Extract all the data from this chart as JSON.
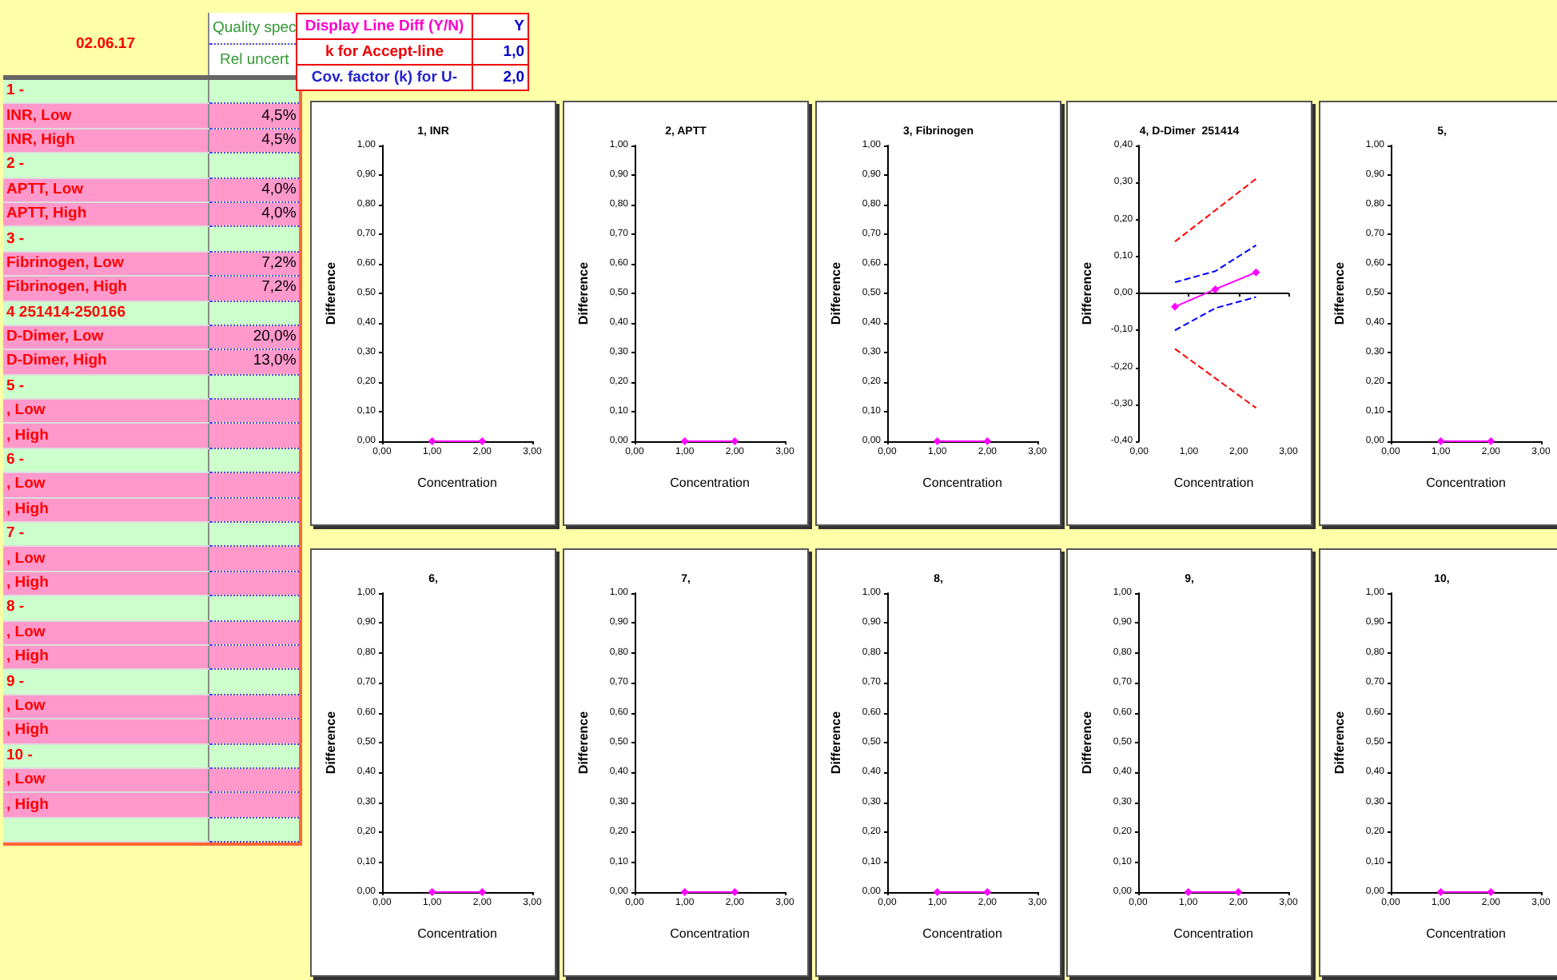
{
  "chart_data": [
    {
      "type": "other",
      "title": "02.06.17",
      "annotations": [
        "Quality spec",
        "Rel uncert"
      ],
      "categories": [
        "1 -",
        "INR, Low",
        "INR, High",
        "2 -",
        "APTT, Low",
        "APTT, High",
        "3 -",
        "Fibrinogen, Low",
        "Fibrinogen, High",
        "4 251414-250166",
        "D-Dimer, Low",
        "D-Dimer, High",
        "5 -",
        ", Low",
        ", High",
        "6 -",
        ", Low",
        ", High",
        "7 -",
        ", Low",
        ", High",
        "8 -",
        ", Low",
        ", High",
        "9 -",
        ", Low",
        ", High",
        "10 -",
        ", Low",
        ", High",
        null
      ],
      "value_labels": [
        null,
        "4,5%",
        "4,5%",
        null,
        "4,0%",
        "4,0%",
        null,
        "7,2%",
        "7,2%",
        null,
        "20,0%",
        "13,0%",
        null,
        null,
        null,
        null,
        null,
        null,
        null,
        null,
        null,
        null,
        null,
        null,
        null,
        null,
        null,
        null,
        null,
        null,
        null
      ],
      "colors": [
        "#ccffcc",
        "#ff99cc",
        "#ff99cc",
        "#ccffcc",
        "#ff99cc",
        "#ff99cc",
        "#ccffcc",
        "#ff99cc",
        "#ff99cc",
        "#ccffcc",
        "#ff99cc",
        "#ff99cc",
        "#ccffcc",
        "#ff99cc",
        "#ff99cc",
        "#ccffcc",
        "#ff99cc",
        "#ff99cc",
        "#ccffcc",
        "#ff99cc",
        "#ff99cc",
        "#ccffcc",
        "#ff99cc",
        "#ff99cc",
        "#ccffcc",
        "#ff99cc",
        "#ff99cc",
        "#ccffcc",
        "#ff99cc",
        "#ff99cc",
        "#ccffcc"
      ]
    },
    {
      "type": "other",
      "categories": [
        "Display Line Diff (Y/N)",
        "k for Accept-line",
        "Cov. factor (k) for U-"
      ],
      "value_labels": [
        "Y",
        "1,0",
        "2,0"
      ],
      "colors": [
        "#ffffff",
        "#ffffff",
        "#ffffff"
      ]
    },
    {
      "type": "line",
      "title": "1, INR",
      "xlabel": "Concentration",
      "ylabel": "Difference",
      "marker": "diamond",
      "xlim": [
        0,
        3
      ],
      "ylim": [
        0,
        1
      ],
      "xticks": [
        {
          "value": 0,
          "label": "0,00"
        },
        {
          "value": 1,
          "label": "1,00"
        },
        {
          "value": 2,
          "label": "2,00"
        },
        {
          "value": 3,
          "label": "3,00"
        }
      ],
      "yticks": [
        {
          "value": 0,
          "label": "0,00"
        },
        {
          "value": 0.1,
          "label": "0,10"
        },
        {
          "value": 0.2,
          "label": "0,20"
        },
        {
          "value": 0.3,
          "label": "0,30"
        },
        {
          "value": 0.4,
          "label": "0,40"
        },
        {
          "value": 0.5,
          "label": "0,50"
        },
        {
          "value": 0.6,
          "label": "0,60"
        },
        {
          "value": 0.7,
          "label": "0,70"
        },
        {
          "value": 0.8,
          "label": "0,80"
        },
        {
          "value": 0.9,
          "label": "0,90"
        },
        {
          "value": 1,
          "label": "1,00"
        }
      ],
      "series": [
        {
          "color": "#ff00ff",
          "x": [
            1,
            2
          ],
          "values": [
            0,
            0
          ]
        }
      ]
    },
    {
      "type": "line",
      "title": "2, APTT",
      "xlabel": "Concentration",
      "ylabel": "Difference",
      "marker": "diamond",
      "xlim": [
        0,
        3
      ],
      "ylim": [
        0,
        1
      ],
      "xticks": [
        {
          "value": 0,
          "label": "0,00"
        },
        {
          "value": 1,
          "label": "1,00"
        },
        {
          "value": 2,
          "label": "2,00"
        },
        {
          "value": 3,
          "label": "3,00"
        }
      ],
      "yticks": [
        {
          "value": 0,
          "label": "0,00"
        },
        {
          "value": 0.1,
          "label": "0,10"
        },
        {
          "value": 0.2,
          "label": "0,20"
        },
        {
          "value": 0.3,
          "label": "0,30"
        },
        {
          "value": 0.4,
          "label": "0,40"
        },
        {
          "value": 0.5,
          "label": "0,50"
        },
        {
          "value": 0.6,
          "label": "0,60"
        },
        {
          "value": 0.7,
          "label": "0,70"
        },
        {
          "value": 0.8,
          "label": "0,80"
        },
        {
          "value": 0.9,
          "label": "0,90"
        },
        {
          "value": 1,
          "label": "1,00"
        }
      ],
      "series": [
        {
          "color": "#ff00ff",
          "x": [
            1,
            2
          ],
          "values": [
            0,
            0
          ]
        }
      ]
    },
    {
      "type": "line",
      "title": "3, Fibrinogen",
      "xlabel": "Concentration",
      "ylabel": "Difference",
      "marker": "diamond",
      "xlim": [
        0,
        3
      ],
      "ylim": [
        0,
        1
      ],
      "xticks": [
        {
          "value": 0,
          "label": "0,00"
        },
        {
          "value": 1,
          "label": "1,00"
        },
        {
          "value": 2,
          "label": "2,00"
        },
        {
          "value": 3,
          "label": "3,00"
        }
      ],
      "yticks": [
        {
          "value": 0,
          "label": "0,00"
        },
        {
          "value": 0.1,
          "label": "0,10"
        },
        {
          "value": 0.2,
          "label": "0,20"
        },
        {
          "value": 0.3,
          "label": "0,30"
        },
        {
          "value": 0.4,
          "label": "0,40"
        },
        {
          "value": 0.5,
          "label": "0,50"
        },
        {
          "value": 0.6,
          "label": "0,60"
        },
        {
          "value": 0.7,
          "label": "0,70"
        },
        {
          "value": 0.8,
          "label": "0,80"
        },
        {
          "value": 0.9,
          "label": "0,90"
        },
        {
          "value": 1,
          "label": "1,00"
        }
      ],
      "series": [
        {
          "color": "#ff00ff",
          "x": [
            1,
            2
          ],
          "values": [
            0,
            0
          ]
        }
      ]
    },
    {
      "type": "line",
      "title": "4, D-Dimer  251414",
      "xlabel": "Concentration",
      "ylabel": "Difference",
      "marker": "diamond",
      "xlim": [
        0,
        3
      ],
      "ylim": [
        -0.4,
        0.4
      ],
      "xticks": [
        {
          "value": 0,
          "label": "0,00"
        },
        {
          "value": 1,
          "label": "1,00"
        },
        {
          "value": 2,
          "label": "2,00"
        },
        {
          "value": 3,
          "label": "3,00"
        }
      ],
      "yticks": [
        {
          "value": -0.4,
          "label": "-0,40"
        },
        {
          "value": -0.3,
          "label": "-0,30"
        },
        {
          "value": -0.2,
          "label": "-0,20"
        },
        {
          "value": -0.1,
          "label": "-0,10"
        },
        {
          "value": 0,
          "label": "0,00"
        },
        {
          "value": 0.1,
          "label": "0,10"
        },
        {
          "value": 0.2,
          "label": "0,20"
        },
        {
          "value": 0.3,
          "label": "0,30"
        },
        {
          "value": 0.4,
          "label": "0,40"
        }
      ],
      "series": [
        {
          "color": "#ff0000",
          "marker": "none",
          "line_style": "dashed",
          "x": [
            0.72,
            2.35
          ],
          "values": [
            0.14,
            0.31
          ]
        },
        {
          "color": "#ff0000",
          "marker": "none",
          "line_style": "dashed",
          "x": [
            0.72,
            2.35
          ],
          "values": [
            -0.15,
            -0.31
          ]
        },
        {
          "color": "#0000ff",
          "marker": "none",
          "line_style": "dashed",
          "x": [
            0.72,
            1.53,
            2.35
          ],
          "values": [
            0.03,
            0.06,
            0.13
          ]
        },
        {
          "color": "#0000ff",
          "marker": "none",
          "line_style": "dashed",
          "x": [
            0.72,
            1.53,
            2.35
          ],
          "values": [
            -0.1,
            -0.04,
            -0.01
          ]
        },
        {
          "color": "#ff00ff",
          "x": [
            0.72,
            1.53,
            2.35
          ],
          "values": [
            -0.036,
            0.011,
            0.057
          ]
        }
      ]
    },
    {
      "type": "line",
      "title": "5,",
      "xlabel": "Concentration",
      "ylabel": "Difference",
      "marker": "diamond",
      "xlim": [
        0,
        3
      ],
      "ylim": [
        0,
        1
      ],
      "xticks": [
        {
          "value": 0,
          "label": "0,00"
        },
        {
          "value": 1,
          "label": "1,00"
        },
        {
          "value": 2,
          "label": "2,00"
        },
        {
          "value": 3,
          "label": "3,00"
        }
      ],
      "yticks": [
        {
          "value": 0,
          "label": "0,00"
        },
        {
          "value": 0.1,
          "label": "0,10"
        },
        {
          "value": 0.2,
          "label": "0,20"
        },
        {
          "value": 0.3,
          "label": "0,30"
        },
        {
          "value": 0.4,
          "label": "0,40"
        },
        {
          "value": 0.5,
          "label": "0,50"
        },
        {
          "value": 0.6,
          "label": "0,60"
        },
        {
          "value": 0.7,
          "label": "0,70"
        },
        {
          "value": 0.8,
          "label": "0,80"
        },
        {
          "value": 0.9,
          "label": "0,90"
        },
        {
          "value": 1,
          "label": "1,00"
        }
      ],
      "series": [
        {
          "color": "#ff00ff",
          "x": [
            1,
            2
          ],
          "values": [
            0,
            0
          ]
        }
      ]
    },
    {
      "type": "line",
      "title": "6,",
      "xlabel": "Concentration",
      "ylabel": "Difference",
      "marker": "diamond",
      "xlim": [
        0,
        3
      ],
      "ylim": [
        0,
        1
      ],
      "xticks": [
        {
          "value": 0,
          "label": "0,00"
        },
        {
          "value": 1,
          "label": "1,00"
        },
        {
          "value": 2,
          "label": "2,00"
        },
        {
          "value": 3,
          "label": "3,00"
        }
      ],
      "yticks": [
        {
          "value": 0,
          "label": "0,00"
        },
        {
          "value": 0.1,
          "label": "0,10"
        },
        {
          "value": 0.2,
          "label": "0,20"
        },
        {
          "value": 0.3,
          "label": "0,30"
        },
        {
          "value": 0.4,
          "label": "0,40"
        },
        {
          "value": 0.5,
          "label": "0,50"
        },
        {
          "value": 0.6,
          "label": "0,60"
        },
        {
          "value": 0.7,
          "label": "0,70"
        },
        {
          "value": 0.8,
          "label": "0,80"
        },
        {
          "value": 0.9,
          "label": "0,90"
        },
        {
          "value": 1,
          "label": "1,00"
        }
      ],
      "series": [
        {
          "color": "#ff00ff",
          "x": [
            1,
            2
          ],
          "values": [
            0,
            0
          ]
        }
      ]
    },
    {
      "type": "line",
      "title": "7,",
      "xlabel": "Concentration",
      "ylabel": "Difference",
      "marker": "diamond",
      "xlim": [
        0,
        3
      ],
      "ylim": [
        0,
        1
      ],
      "xticks": [
        {
          "value": 0,
          "label": "0,00"
        },
        {
          "value": 1,
          "label": "1,00"
        },
        {
          "value": 2,
          "label": "2,00"
        },
        {
          "value": 3,
          "label": "3,00"
        }
      ],
      "yticks": [
        {
          "value": 0,
          "label": "0,00"
        },
        {
          "value": 0.1,
          "label": "0,10"
        },
        {
          "value": 0.2,
          "label": "0,20"
        },
        {
          "value": 0.3,
          "label": "0,30"
        },
        {
          "value": 0.4,
          "label": "0,40"
        },
        {
          "value": 0.5,
          "label": "0,50"
        },
        {
          "value": 0.6,
          "label": "0,60"
        },
        {
          "value": 0.7,
          "label": "0,70"
        },
        {
          "value": 0.8,
          "label": "0,80"
        },
        {
          "value": 0.9,
          "label": "0,90"
        },
        {
          "value": 1,
          "label": "1,00"
        }
      ],
      "series": [
        {
          "color": "#ff00ff",
          "x": [
            1,
            2
          ],
          "values": [
            0,
            0
          ]
        }
      ]
    },
    {
      "type": "line",
      "title": "8,",
      "xlabel": "Concentration",
      "ylabel": "Difference",
      "marker": "diamond",
      "xlim": [
        0,
        3
      ],
      "ylim": [
        0,
        1
      ],
      "xticks": [
        {
          "value": 0,
          "label": "0,00"
        },
        {
          "value": 1,
          "label": "1,00"
        },
        {
          "value": 2,
          "label": "2,00"
        },
        {
          "value": 3,
          "label": "3,00"
        }
      ],
      "yticks": [
        {
          "value": 0,
          "label": "0,00"
        },
        {
          "value": 0.1,
          "label": "0,10"
        },
        {
          "value": 0.2,
          "label": "0,20"
        },
        {
          "value": 0.3,
          "label": "0,30"
        },
        {
          "value": 0.4,
          "label": "0,40"
        },
        {
          "value": 0.5,
          "label": "0,50"
        },
        {
          "value": 0.6,
          "label": "0,60"
        },
        {
          "value": 0.7,
          "label": "0,70"
        },
        {
          "value": 0.8,
          "label": "0,80"
        },
        {
          "value": 0.9,
          "label": "0,90"
        },
        {
          "value": 1,
          "label": "1,00"
        }
      ],
      "series": [
        {
          "color": "#ff00ff",
          "x": [
            1,
            2
          ],
          "values": [
            0,
            0
          ]
        }
      ]
    },
    {
      "type": "line",
      "title": "9,",
      "xlabel": "Concentration",
      "ylabel": "Difference",
      "marker": "diamond",
      "xlim": [
        0,
        3
      ],
      "ylim": [
        0,
        1
      ],
      "xticks": [
        {
          "value": 0,
          "label": "0,00"
        },
        {
          "value": 1,
          "label": "1,00"
        },
        {
          "value": 2,
          "label": "2,00"
        },
        {
          "value": 3,
          "label": "3,00"
        }
      ],
      "yticks": [
        {
          "value": 0,
          "label": "0,00"
        },
        {
          "value": 0.1,
          "label": "0,10"
        },
        {
          "value": 0.2,
          "label": "0,20"
        },
        {
          "value": 0.3,
          "label": "0,30"
        },
        {
          "value": 0.4,
          "label": "0,40"
        },
        {
          "value": 0.5,
          "label": "0,50"
        },
        {
          "value": 0.6,
          "label": "0,60"
        },
        {
          "value": 0.7,
          "label": "0,70"
        },
        {
          "value": 0.8,
          "label": "0,80"
        },
        {
          "value": 0.9,
          "label": "0,90"
        },
        {
          "value": 1,
          "label": "1,00"
        }
      ],
      "series": [
        {
          "color": "#ff00ff",
          "x": [
            1,
            2
          ],
          "values": [
            0,
            0
          ]
        }
      ]
    },
    {
      "type": "line",
      "title": "10,",
      "xlabel": "Concentration",
      "ylabel": "Difference",
      "marker": "diamond",
      "xlim": [
        0,
        3
      ],
      "ylim": [
        0,
        1
      ],
      "xticks": [
        {
          "value": 0,
          "label": "0,00"
        },
        {
          "value": 1,
          "label": "1,00"
        },
        {
          "value": 2,
          "label": "2,00"
        },
        {
          "value": 3,
          "label": "3,00"
        }
      ],
      "yticks": [
        {
          "value": 0,
          "label": "0,00"
        },
        {
          "value": 0.1,
          "label": "0,10"
        },
        {
          "value": 0.2,
          "label": "0,20"
        },
        {
          "value": 0.3,
          "label": "0,30"
        },
        {
          "value": 0.4,
          "label": "0,40"
        },
        {
          "value": 0.5,
          "label": "0,50"
        },
        {
          "value": 0.6,
          "label": "0,60"
        },
        {
          "value": 0.7,
          "label": "0,70"
        },
        {
          "value": 0.8,
          "label": "0,80"
        },
        {
          "value": 0.9,
          "label": "0,90"
        },
        {
          "value": 1,
          "label": "1,00"
        }
      ],
      "series": [
        {
          "color": "#ff00ff",
          "x": [
            1,
            2
          ],
          "values": [
            0,
            0
          ]
        }
      ]
    }
  ]
}
